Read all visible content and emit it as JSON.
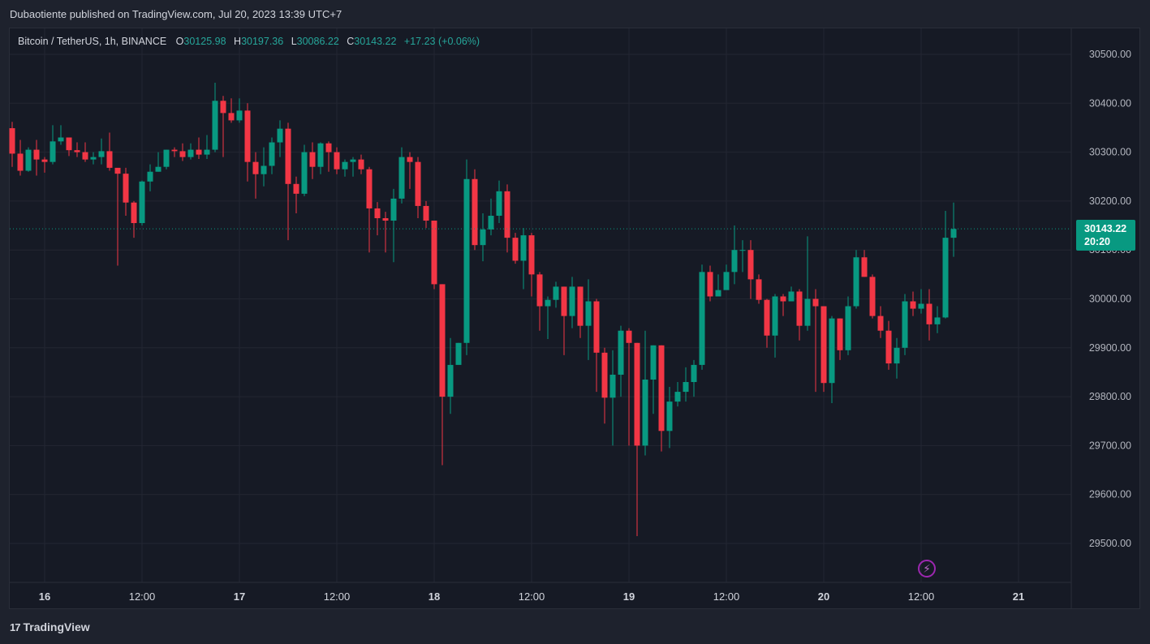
{
  "header": {
    "published": "Dubaotiente published on TradingView.com, Jul 20, 2023 13:39 UTC+7"
  },
  "legend": {
    "symbol": "Bitcoin / TetherUS, 1h, BINANCE",
    "o_label": "O",
    "o": "30125.98",
    "h_label": "H",
    "h": "30197.36",
    "l_label": "L",
    "l": "30086.22",
    "c_label": "C",
    "c": "30143.22",
    "change": "+17.23 (+0.06%)"
  },
  "price_tag": {
    "price": "30143.22",
    "countdown": "20:20"
  },
  "footer": {
    "brand": "TradingView"
  },
  "colors": {
    "up": "#089981",
    "down": "#f23645",
    "background": "#161a25",
    "grid": "#232632"
  },
  "chart_data": {
    "type": "candlestick",
    "y_ticks": [
      "30500.00",
      "30400.00",
      "30300.00",
      "30200.00",
      "30100.00",
      "30000.00",
      "29900.00",
      "29800.00",
      "29700.00",
      "29600.00",
      "29500.00"
    ],
    "x_ticks": [
      "16",
      "12:00",
      "17",
      "12:00",
      "18",
      "12:00",
      "19",
      "12:00",
      "20",
      "12:00",
      "21"
    ],
    "ylim": [
      29430,
      30580
    ],
    "last_price": 30143.22,
    "candles": [
      [
        30349,
        30297,
        30362,
        30270
      ],
      [
        30297,
        30262,
        30325,
        30252
      ],
      [
        30262,
        30305,
        30310,
        30260
      ],
      [
        30305,
        30285,
        30325,
        30252
      ],
      [
        30285,
        30280,
        30290,
        30258
      ],
      [
        30280,
        30322,
        30355,
        30275
      ],
      [
        30322,
        30330,
        30355,
        30315
      ],
      [
        30330,
        30304,
        30330,
        30292
      ],
      [
        30304,
        30300,
        30320,
        30290
      ],
      [
        30300,
        30285,
        30320,
        30280
      ],
      [
        30285,
        30290,
        30300,
        30275
      ],
      [
        30290,
        30302,
        30328,
        30275
      ],
      [
        30302,
        30268,
        30340,
        30262
      ],
      [
        30268,
        30256,
        30262,
        30068
      ],
      [
        30256,
        30197,
        30268,
        30170
      ],
      [
        30197,
        30155,
        30200,
        30125
      ],
      [
        30155,
        30240,
        30242,
        30150
      ],
      [
        30240,
        30260,
        30275,
        30220
      ],
      [
        30260,
        30270,
        30300,
        30260
      ],
      [
        30270,
        30305,
        30305,
        30265
      ],
      [
        30305,
        30302,
        30310,
        30290
      ],
      [
        30302,
        30290,
        30318,
        30282
      ],
      [
        30290,
        30305,
        30318,
        30285
      ],
      [
        30305,
        30295,
        30330,
        30286
      ],
      [
        30295,
        30305,
        30335,
        30286
      ],
      [
        30305,
        30405,
        30442,
        30300
      ],
      [
        30405,
        30380,
        30415,
        30290
      ],
      [
        30380,
        30365,
        30410,
        30360
      ],
      [
        30365,
        30385,
        30410,
        30360
      ],
      [
        30385,
        30280,
        30400,
        30240
      ],
      [
        30280,
        30255,
        30300,
        30205
      ],
      [
        30255,
        30272,
        30310,
        30230
      ],
      [
        30272,
        30320,
        30330,
        30255
      ],
      [
        30320,
        30348,
        30365,
        30290
      ],
      [
        30348,
        30235,
        30360,
        30120
      ],
      [
        30235,
        30215,
        30250,
        30175
      ],
      [
        30215,
        30300,
        30315,
        30210
      ],
      [
        30300,
        30270,
        30320,
        30245
      ],
      [
        30270,
        30318,
        30320,
        30255
      ],
      [
        30318,
        30300,
        30322,
        30260
      ],
      [
        30300,
        30265,
        30310,
        30255
      ],
      [
        30265,
        30280,
        30285,
        30250
      ],
      [
        30280,
        30285,
        30290,
        30250
      ],
      [
        30285,
        30265,
        30295,
        30255
      ],
      [
        30265,
        30185,
        30270,
        30095
      ],
      [
        30185,
        30165,
        30198,
        30130
      ],
      [
        30165,
        30160,
        30178,
        30095
      ],
      [
        30160,
        30205,
        30225,
        30075
      ],
      [
        30205,
        30290,
        30310,
        30195
      ],
      [
        30290,
        30280,
        30300,
        30225
      ],
      [
        30280,
        30190,
        30290,
        30165
      ],
      [
        30190,
        30160,
        30200,
        30145
      ],
      [
        30160,
        30030,
        30160,
        30020
      ],
      [
        30030,
        29800,
        30030,
        29660
      ],
      [
        29800,
        29865,
        29920,
        29765
      ],
      [
        29865,
        29910,
        29910,
        29895
      ],
      [
        29910,
        30245,
        30285,
        29885
      ],
      [
        30245,
        30110,
        30265,
        30100
      ],
      [
        30110,
        30142,
        30175,
        30077
      ],
      [
        30142,
        30170,
        30205,
        30130
      ],
      [
        30170,
        30220,
        30242,
        30155
      ],
      [
        30220,
        30125,
        30234,
        30095
      ],
      [
        30125,
        30078,
        30135,
        30072
      ],
      [
        30078,
        30130,
        30145,
        30020
      ],
      [
        30130,
        30050,
        30135,
        30005
      ],
      [
        30050,
        29985,
        30055,
        29935
      ],
      [
        29985,
        29998,
        30005,
        29918
      ],
      [
        29998,
        30025,
        30035,
        29982
      ],
      [
        30025,
        29965,
        30025,
        29885
      ],
      [
        29965,
        30025,
        30045,
        29940
      ],
      [
        30025,
        29945,
        30025,
        29920
      ],
      [
        29945,
        29995,
        30040,
        29875
      ],
      [
        29995,
        29890,
        30000,
        29810
      ],
      [
        29890,
        29798,
        29900,
        29745
      ],
      [
        29798,
        29845,
        29895,
        29700
      ],
      [
        29845,
        29935,
        29945,
        29800
      ],
      [
        29935,
        29910,
        29940,
        29700
      ],
      [
        29910,
        29700,
        29910,
        29515
      ],
      [
        29700,
        29835,
        29935,
        29680
      ],
      [
        29835,
        29905,
        29905,
        29765
      ],
      [
        29905,
        29730,
        29905,
        29688
      ],
      [
        29730,
        29790,
        29820,
        29695
      ],
      [
        29790,
        29810,
        29830,
        29780
      ],
      [
        29810,
        29830,
        29860,
        29790
      ],
      [
        29830,
        29865,
        29875,
        29800
      ],
      [
        29865,
        30055,
        30070,
        29855
      ],
      [
        30055,
        30005,
        30068,
        29995
      ],
      [
        30005,
        30018,
        30050,
        30015
      ],
      [
        30018,
        30055,
        30070,
        30030
      ],
      [
        30055,
        30100,
        30150,
        30030
      ],
      [
        30100,
        30100,
        30120,
        30055
      ],
      [
        30100,
        30040,
        30120,
        30000
      ],
      [
        30040,
        29998,
        30050,
        29990
      ],
      [
        29998,
        29925,
        30000,
        29900
      ],
      [
        29925,
        30005,
        30010,
        29880
      ],
      [
        30005,
        29995,
        30010,
        29965
      ],
      [
        29995,
        30015,
        30025,
        29995
      ],
      [
        30015,
        29945,
        30020,
        29915
      ],
      [
        29945,
        30000,
        30128,
        29935
      ],
      [
        30000,
        29985,
        30020,
        29810
      ],
      [
        29985,
        29828,
        29985,
        29810
      ],
      [
        29828,
        29960,
        29965,
        29787
      ],
      [
        29960,
        29895,
        29960,
        29875
      ],
      [
        29895,
        29985,
        30005,
        29885
      ],
      [
        29985,
        30085,
        30100,
        29980
      ],
      [
        30085,
        30045,
        30100,
        30045
      ],
      [
        30045,
        29965,
        30050,
        29960
      ],
      [
        29965,
        29935,
        29985,
        29920
      ],
      [
        29935,
        29868,
        29955,
        29855
      ],
      [
        29868,
        29900,
        29920,
        29837
      ],
      [
        29900,
        29995,
        30010,
        29885
      ],
      [
        29995,
        29980,
        30015,
        29965
      ],
      [
        29980,
        29990,
        30020,
        29970
      ],
      [
        29990,
        29948,
        30020,
        29915
      ],
      [
        29948,
        29962,
        29985,
        29930
      ],
      [
        29962,
        30125,
        30180,
        29960
      ],
      [
        30125,
        30143,
        30197,
        30086
      ]
    ]
  }
}
